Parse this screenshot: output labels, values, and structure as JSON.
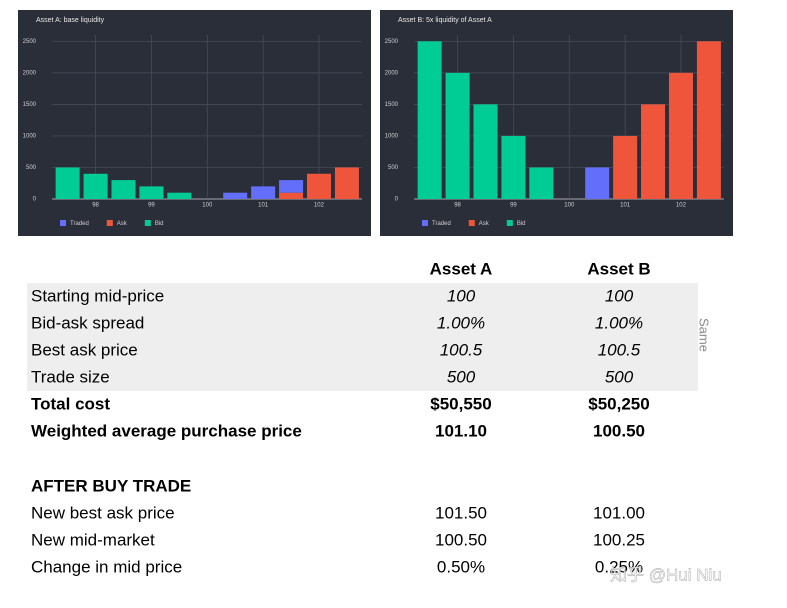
{
  "chart_data": [
    {
      "type": "bar",
      "stacked": true,
      "title": "Asset A: base liquidity",
      "x": [
        97.5,
        98,
        98.5,
        99,
        99.5,
        100.5,
        101,
        101.5,
        102,
        102.5
      ],
      "series": [
        {
          "name": "Traded",
          "color": "#636efa",
          "values": [
            null,
            null,
            null,
            null,
            null,
            100,
            200,
            200,
            null,
            null
          ]
        },
        {
          "name": "Ask",
          "color": "#ef553b",
          "values": [
            null,
            null,
            null,
            null,
            null,
            null,
            null,
            100,
            400,
            500
          ]
        },
        {
          "name": "Bid",
          "color": "#00cc96",
          "values": [
            500,
            400,
            300,
            200,
            100,
            null,
            null,
            null,
            null,
            null
          ]
        }
      ],
      "xlim": [
        97.22,
        102.77
      ],
      "xticks": [
        98,
        99,
        100,
        101,
        102
      ],
      "ylim": [
        0,
        2600
      ],
      "yticks": [
        0,
        500,
        1000,
        1500,
        2000,
        2500
      ],
      "grid": true,
      "background": "#2a2e39"
    },
    {
      "type": "bar",
      "stacked": true,
      "title": "Asset B: 5x liquidity of Asset A",
      "x": [
        97.5,
        98,
        98.5,
        99,
        99.5,
        100.5,
        101,
        101.5,
        102,
        102.5
      ],
      "series": [
        {
          "name": "Traded",
          "color": "#636efa",
          "values": [
            null,
            null,
            null,
            null,
            null,
            500,
            null,
            null,
            null,
            null
          ]
        },
        {
          "name": "Ask",
          "color": "#ef553b",
          "values": [
            null,
            null,
            null,
            null,
            null,
            null,
            1000,
            1500,
            2000,
            2500
          ]
        },
        {
          "name": "Bid",
          "color": "#00cc96",
          "values": [
            2500,
            2000,
            1500,
            1000,
            500,
            null,
            null,
            null,
            null,
            null
          ]
        }
      ],
      "xlim": [
        97.22,
        102.77
      ],
      "xticks": [
        98,
        99,
        100,
        101,
        102
      ],
      "ylim": [
        0,
        2600
      ],
      "yticks": [
        0,
        500,
        1000,
        1500,
        2000,
        2500
      ],
      "grid": true,
      "background": "#2a2e39"
    }
  ],
  "table": {
    "columns": [
      "Asset A",
      "Asset B"
    ],
    "assumptions": [
      [
        "Starting mid-price",
        "100",
        "100"
      ],
      [
        "Bid-ask spread",
        "1.00%",
        "1.00%"
      ],
      [
        "Best ask price",
        "100.5",
        "100.5"
      ],
      [
        "Trade size",
        "500",
        "500"
      ]
    ],
    "assumptions_note": "Same",
    "results": [
      [
        "Total cost",
        "$50,550",
        "$50,250"
      ],
      [
        "Weighted average purchase price",
        "101.10",
        "100.50"
      ]
    ],
    "section_title": "AFTER BUY TRADE",
    "after": [
      [
        "New best ask price",
        "101.50",
        "101.00"
      ],
      [
        "New mid-market",
        "100.50",
        "100.25"
      ],
      [
        "Change in mid price",
        "0.50%",
        "0.25%"
      ]
    ]
  },
  "watermark": "知乎 @Hui Niu"
}
